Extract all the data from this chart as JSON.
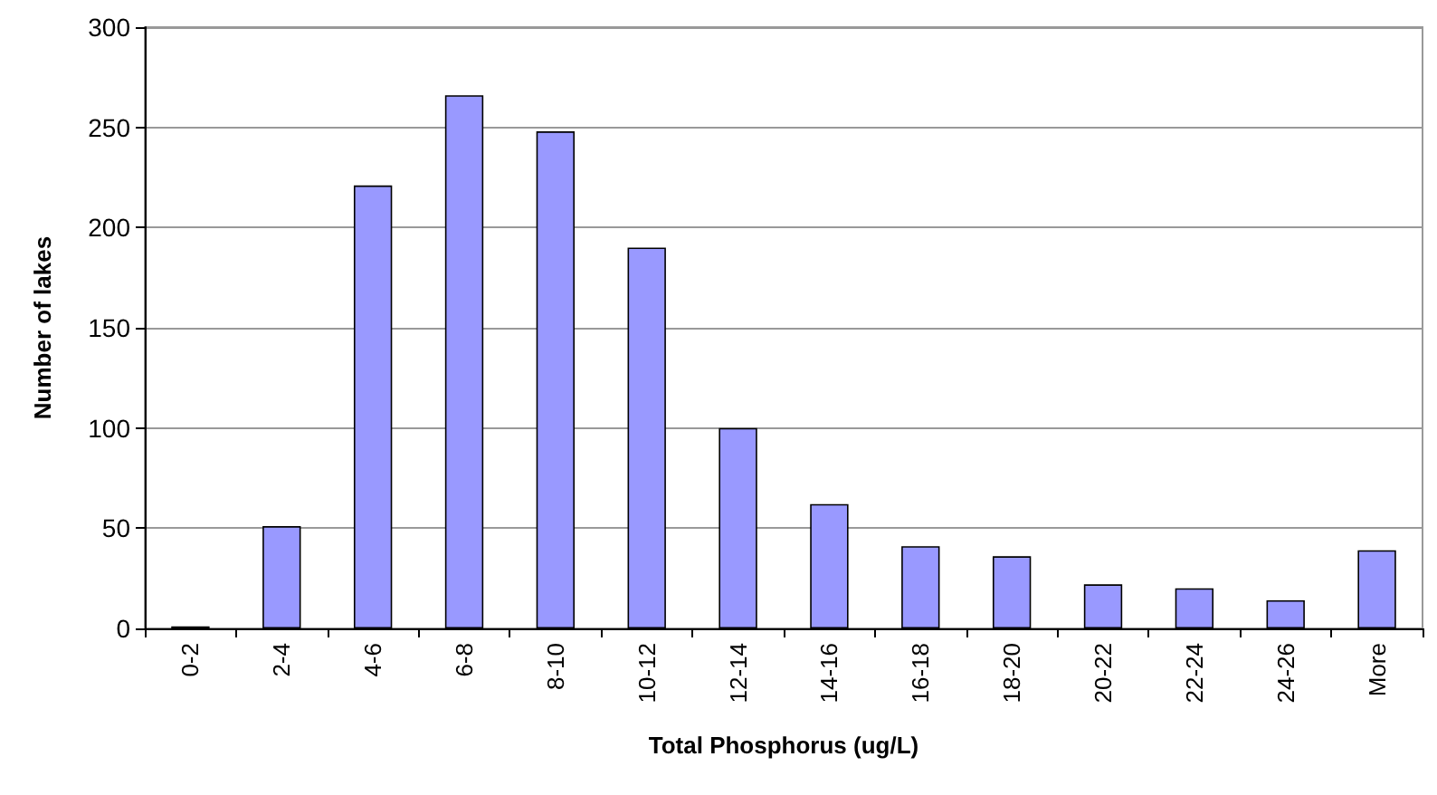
{
  "chart_data": {
    "type": "bar",
    "xlabel": "Total Phosphorus (ug/L)",
    "ylabel": "Number of lakes",
    "categories": [
      "0-2",
      "2-4",
      "4-6",
      "6-8",
      "8-10",
      "10-12",
      "12-14",
      "14-16",
      "16-18",
      "18-20",
      "20-22",
      "22-24",
      "24-26",
      "More"
    ],
    "values": [
      1,
      51,
      221,
      266,
      248,
      190,
      100,
      62,
      41,
      36,
      22,
      20,
      14,
      39
    ],
    "color": "#9999ff",
    "ylim": [
      0,
      300
    ],
    "yticks": [
      0,
      50,
      100,
      150,
      200,
      250,
      300
    ],
    "grid": "y"
  }
}
